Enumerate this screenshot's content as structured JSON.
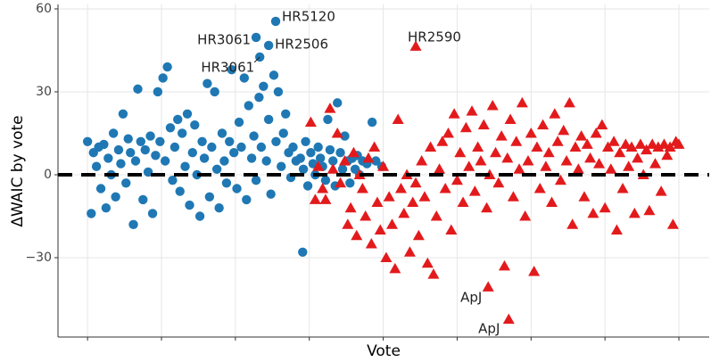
{
  "chart_data": {
    "type": "scatter",
    "xlabel": "Vote",
    "ylabel": "ΔWAIC by vote",
    "xlim": [
      60,
      941
    ],
    "ylim": [
      -58.7,
      61.6
    ],
    "xticks": [
      100,
      200,
      300,
      400,
      500,
      600,
      700,
      800,
      900
    ],
    "yticks": [
      60,
      30,
      0,
      {
        "value": -30,
        "label": "−30"
      }
    ],
    "grid": true,
    "hline": 0,
    "series": [
      {
        "color": "#1f78b4",
        "marker": "circle",
        "x": [
          100,
          105,
          108,
          112,
          115,
          118,
          122,
          125,
          128,
          132,
          135,
          138,
          142,
          145,
          148,
          152,
          155,
          158,
          162,
          165,
          168,
          172,
          175,
          178,
          182,
          185,
          188,
          192,
          195,
          198,
          202,
          205,
          208,
          212,
          215,
          218,
          222,
          225,
          228,
          232,
          235,
          238,
          242,
          245,
          248,
          252,
          255,
          258,
          262,
          265,
          268,
          272,
          275,
          278,
          282,
          285,
          288,
          292,
          295,
          298,
          302,
          305,
          308,
          312,
          315,
          318,
          322,
          325,
          328,
          332,
          335,
          338,
          342,
          345,
          348,
          352,
          355,
          358,
          362,
          365,
          368,
          372,
          375,
          378,
          382,
          391,
          388,
          392,
          395,
          398,
          402,
          405,
          408,
          412,
          415,
          418,
          422,
          425,
          428,
          432,
          435,
          438,
          442,
          445,
          448,
          452,
          455,
          458,
          462,
          465,
          468,
          472,
          478,
          485,
          490,
          498
        ],
        "values": [
          12,
          -14,
          8,
          3,
          10,
          -5,
          11,
          -12,
          6,
          0,
          15,
          -8,
          9,
          4,
          22,
          -3,
          13,
          8,
          -18,
          5,
          31,
          12,
          -9,
          9,
          1,
          14,
          -14,
          7,
          30,
          12,
          35,
          5,
          39,
          17,
          -2,
          10,
          20,
          -6,
          15,
          3,
          22,
          -11,
          8,
          18,
          0,
          -15,
          12,
          6,
          33,
          -8,
          10,
          30,
          2,
          -12,
          15,
          5,
          -3,
          12,
          38,
          8,
          -5,
          19,
          10,
          35,
          -9,
          25,
          6,
          14,
          -2,
          28,
          10,
          32,
          5,
          20,
          -7,
          36,
          12,
          30,
          3,
          15,
          22,
          8,
          -1,
          10,
          5,
          -28,
          6,
          2,
          12,
          -4,
          8,
          4,
          0,
          10,
          6,
          3,
          -2,
          20,
          9,
          5,
          -4,
          26,
          8,
          2,
          14,
          5,
          -3,
          6,
          2,
          7,
          0,
          5,
          4,
          19,
          5,
          3
        ],
        "labeled": [
          {
            "label": "HR5120",
            "x": 354.5,
            "y": 55.5
          },
          {
            "label": "HR3061",
            "x": 328,
            "y": 49.7
          },
          {
            "label": "HR2506",
            "x": 345,
            "y": 46.8
          },
          {
            "label": "HR3061",
            "x": 333,
            "y": 42.6
          }
        ]
      },
      {
        "color": "#e31a1c",
        "marker": "triangle",
        "x": [
          402,
          408,
          412,
          418,
          422,
          428,
          432,
          438,
          442,
          448,
          452,
          456,
          460,
          464,
          468,
          472,
          476,
          480,
          484,
          488,
          492,
          496,
          500,
          504,
          508,
          512,
          516,
          520,
          524,
          528,
          532,
          536,
          540,
          544,
          548,
          552,
          556,
          560,
          564,
          568,
          572,
          576,
          580,
          584,
          588,
          592,
          596,
          600,
          604,
          608,
          612,
          616,
          620,
          624,
          628,
          632,
          636,
          640,
          644,
          648,
          652,
          656,
          660,
          664,
          668,
          672,
          676,
          680,
          684,
          688,
          692,
          696,
          700,
          704,
          708,
          712,
          716,
          720,
          724,
          728,
          732,
          736,
          740,
          744,
          748,
          752,
          756,
          760,
          764,
          768,
          772,
          776,
          780,
          784,
          788,
          792,
          796,
          800,
          804,
          808,
          812,
          816,
          820,
          824,
          828,
          832,
          836,
          840,
          844,
          848,
          852,
          856,
          860,
          864,
          868,
          872,
          876,
          880,
          884,
          888,
          892,
          896,
          900
        ],
        "values": [
          19,
          -9,
          3,
          -5,
          -9,
          24,
          2,
          15,
          -3,
          5,
          -18,
          -12,
          8,
          -22,
          0,
          -5,
          -15,
          6,
          -25,
          10,
          -10,
          -20,
          3,
          -30,
          -8,
          -18,
          -34,
          20,
          -5,
          -14,
          0,
          -28,
          -10,
          -3,
          -22,
          5,
          -8,
          -32,
          10,
          -36,
          -15,
          2,
          12,
          -5,
          15,
          -20,
          22,
          -2,
          8,
          -10,
          17,
          3,
          23,
          -6,
          10,
          5,
          18,
          -12,
          0,
          25,
          8,
          -3,
          14,
          -33,
          6,
          20,
          -8,
          12,
          2,
          26,
          -15,
          5,
          15,
          -35,
          10,
          -5,
          18,
          3,
          8,
          -10,
          22,
          12,
          -2,
          16,
          5,
          26,
          -18,
          10,
          2,
          14,
          -8,
          11,
          6,
          -14,
          15,
          4,
          18,
          -12,
          10,
          2,
          12,
          -20,
          8,
          -5,
          11,
          3,
          10,
          -14,
          6,
          11,
          0,
          9,
          -13,
          11,
          4,
          10,
          -6,
          11,
          7,
          10,
          -18,
          12,
          11
        ],
        "labeled": [
          {
            "label": "HR2590",
            "x": 544,
            "y": 46.5
          },
          {
            "label": "ApJ",
            "x": 642,
            "y": -40.6
          },
          {
            "label": "ApJ",
            "x": 669.8,
            "y": -52.3
          }
        ]
      }
    ]
  }
}
